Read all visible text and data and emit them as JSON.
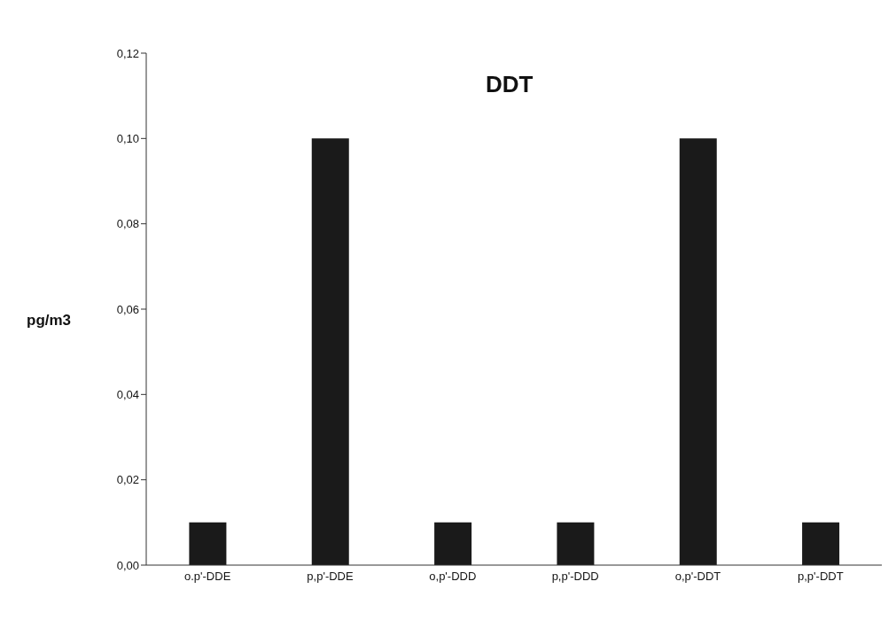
{
  "chart_data": {
    "type": "bar",
    "title": "DDT",
    "ylabel": "pg/m3",
    "categories": [
      "o.p'-DDE",
      "p,p'-DDE",
      "o,p'-DDD",
      "p,p'-DDD",
      "o,p'-DDT",
      "p,p'-DDT"
    ],
    "values": [
      0.01,
      0.1,
      0.01,
      0.01,
      0.1,
      0.01
    ],
    "color": "#1a1a1a",
    "ylim": [
      0,
      0.12
    ],
    "yticks": [
      {
        "value": 0,
        "label": "0,00"
      },
      {
        "value": 0.02,
        "label": "0,02"
      },
      {
        "value": 0.04,
        "label": "0,04"
      },
      {
        "value": 0.06,
        "label": "0,06"
      },
      {
        "value": 0.08,
        "label": "0,08"
      },
      {
        "value": 0.1,
        "label": "0,10"
      },
      {
        "value": 0.12,
        "label": "0,12"
      }
    ],
    "grid": false,
    "legend": false
  }
}
